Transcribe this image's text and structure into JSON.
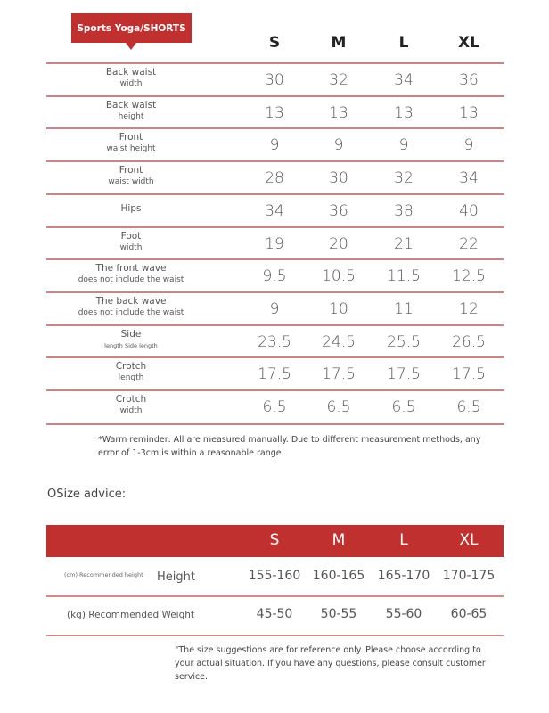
{
  "title": "Sports Yoga/SHORTS",
  "sizes": [
    "S",
    "M",
    "L",
    "XL"
  ],
  "rows": [
    {
      "label_main": "Back waist",
      "label_sub": "width",
      "values": [
        "30",
        "32",
        "34",
        "36"
      ]
    },
    {
      "label_main": "Back waist",
      "label_sub": "height",
      "values": [
        "13",
        "13",
        "13",
        "13"
      ]
    },
    {
      "label_main": "Front",
      "label_sub": "waist height",
      "values": [
        "9",
        "9",
        "9",
        "9"
      ]
    },
    {
      "label_main": "Front",
      "label_sub": "waist width",
      "values": [
        "28",
        "30",
        "32",
        "34"
      ]
    },
    {
      "label_main": "Hips",
      "label_sub": "",
      "values": [
        "34",
        "36",
        "38",
        "40"
      ]
    },
    {
      "label_main": "Foot",
      "label_sub": "width",
      "values": [
        "19",
        "20",
        "21",
        "22"
      ]
    },
    {
      "label_main": "The front wave",
      "label_sub": "does not include the waist",
      "values": [
        "9.5",
        "10.5",
        "11.5",
        "12.5"
      ]
    },
    {
      "label_main": "The back wave",
      "label_sub": "does not include the waist",
      "values": [
        "9",
        "10",
        "11",
        "12"
      ]
    },
    {
      "label_main": "Side",
      "label_sub": "length Side length",
      "values": [
        "23.5",
        "24.5",
        "25.5",
        "26.5"
      ]
    },
    {
      "label_main": "Crotch",
      "label_sub": "length",
      "values": [
        "17.5",
        "17.5",
        "17.5",
        "17.5"
      ]
    },
    {
      "label_main": "Crotch",
      "label_sub": "width",
      "values": [
        "6.5",
        "6.5",
        "6.5",
        "6.5"
      ]
    }
  ],
  "warm_reminder": "*Warm reminder: All are measured manually. Due to different measurement methods, any error of 1-3cm is within a reasonable range.",
  "size_advice": {
    "heading": "OSize advice:",
    "sizes": [
      "S",
      "M",
      "L",
      "XL"
    ],
    "height_row": {
      "label_small": "(cm) Recommended height",
      "label": "Height",
      "values": [
        "155-160",
        "160-165",
        "165-170",
        "170-175"
      ]
    },
    "weight_row": {
      "label": "(kg) Recommended Weight",
      "values": [
        "45-50",
        "50-55",
        "55-60",
        "60-65"
      ]
    },
    "note": "\"The size suggestions are for reference only. Please choose according to your actual situation. If you have any questions, please consult customer service."
  },
  "colors": {
    "accent": "#c0302f",
    "divider": "#c98585"
  }
}
